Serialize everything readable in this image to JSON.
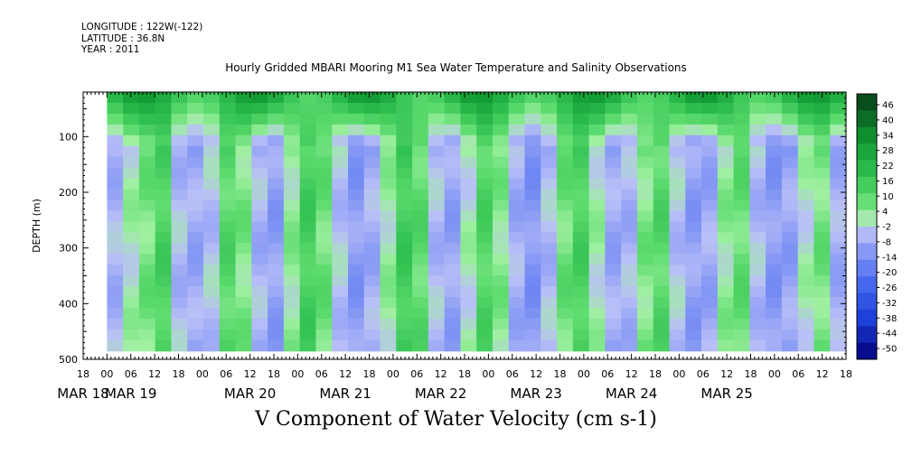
{
  "header": {
    "longitude": "LONGITUDE : 122W(-122)",
    "latitude": "LATITUDE : 36.8N",
    "year": "YEAR : 2011"
  },
  "chart_data": {
    "type": "heatmap",
    "title": "Hourly Gridded MBARI Mooring M1 Sea Water Temperature and Salinity Observations",
    "subtitle": "V Component of Water Velocity (cm s-1)",
    "ylabel": "DEPTH (m)",
    "y_axis": {
      "range": [
        500,
        20
      ],
      "reversed": true,
      "major_ticks": [
        100,
        200,
        300,
        400,
        500
      ]
    },
    "x_axis": {
      "hour_ticks": [
        "18",
        "00",
        "06",
        "12",
        "18",
        "00",
        "06",
        "12",
        "18",
        "00",
        "06",
        "12",
        "18",
        "00",
        "06",
        "12",
        "18",
        "00",
        "06",
        "12",
        "18",
        "00",
        "06",
        "12",
        "18",
        "00",
        "06",
        "12",
        "18",
        "00",
        "06",
        "12",
        "18"
      ],
      "date_labels": [
        "MAR 18",
        "MAR 19",
        "MAR 20",
        "MAR 21",
        "MAR 22",
        "MAR 23",
        "MAR 24",
        "MAR 25"
      ],
      "start_hour_offset": -6,
      "range_hours": [
        -6,
        186
      ]
    },
    "colorbar": {
      "labels": [
        "46",
        "40",
        "34",
        "28",
        "22",
        "16",
        "10",
        "4",
        "-2",
        "-8",
        "-14",
        "-20",
        "-26",
        "-32",
        "-38",
        "-44",
        "-50"
      ],
      "range": [
        -50,
        50
      ]
    },
    "columns": [
      {
        "mid": -4
      },
      {
        "mid": 3
      },
      {
        "mid": 8
      },
      {
        "mid": 14
      },
      {
        "mid": -3
      },
      {
        "mid": -6
      },
      {
        "mid": -2
      },
      {
        "mid": 12
      },
      {
        "mid": 7
      },
      {
        "mid": -4
      },
      {
        "mid": -8
      },
      {
        "mid": 5
      },
      {
        "mid": 15
      },
      {
        "mid": 9
      },
      {
        "mid": -2
      },
      {
        "mid": -9
      },
      {
        "mid": -5
      },
      {
        "mid": 4
      },
      {
        "mid": 16
      },
      {
        "mid": 11
      },
      {
        "mid": -3
      },
      {
        "mid": -7
      },
      {
        "mid": 2
      },
      {
        "mid": 13
      },
      {
        "mid": 6
      },
      {
        "mid": -5
      },
      {
        "mid": -10
      },
      {
        "mid": -3
      },
      {
        "mid": 9
      },
      {
        "mid": 14
      },
      {
        "mid": 3
      },
      {
        "mid": -6
      },
      {
        "mid": -4
      },
      {
        "mid": 7
      },
      {
        "mid": 12
      },
      {
        "mid": -2
      },
      {
        "mid": -8
      },
      {
        "mid": -6
      },
      {
        "mid": 5
      },
      {
        "mid": 10
      },
      {
        "mid": -3
      },
      {
        "mid": -9
      },
      {
        "mid": -7
      },
      {
        "mid": 2
      },
      {
        "mid": 8
      },
      {
        "mid": -5
      }
    ]
  }
}
